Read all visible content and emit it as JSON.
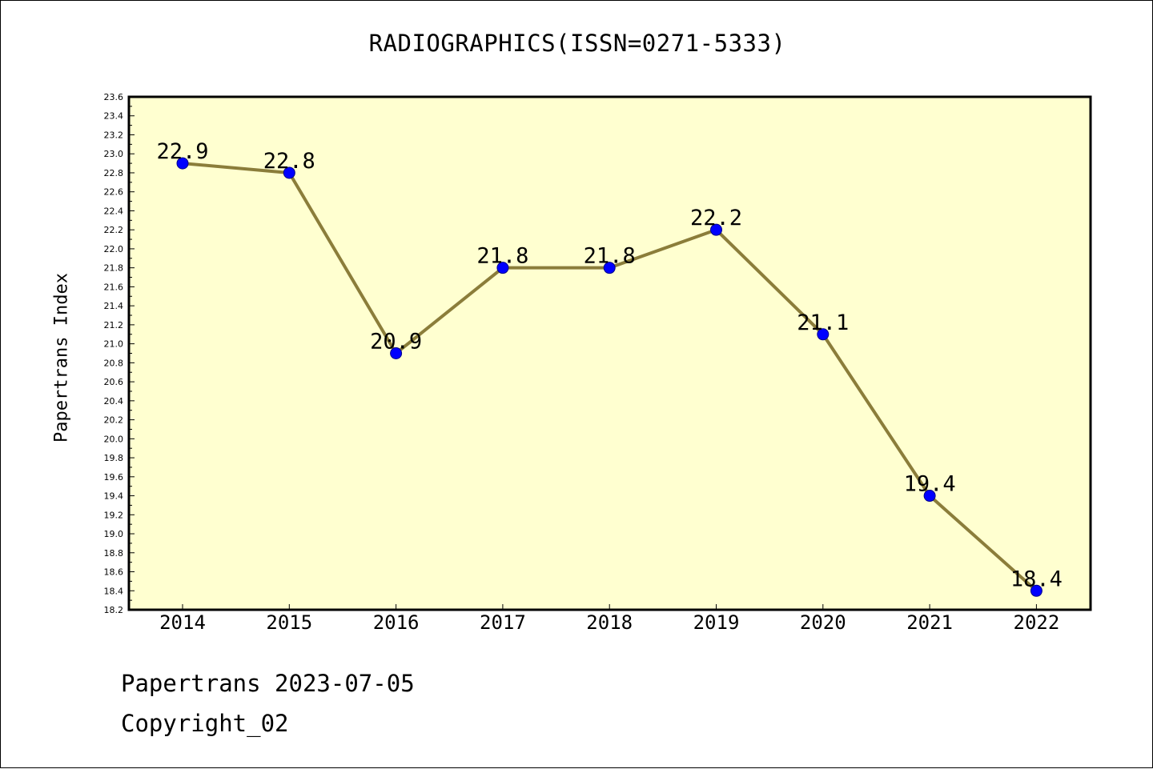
{
  "chart_data": {
    "type": "line",
    "title": "RADIOGRAPHICS(ISSN=0271-5333)",
    "ylabel": "Papertrans Index",
    "xlabel": "",
    "categories": [
      "2014",
      "2015",
      "2016",
      "2017",
      "2018",
      "2019",
      "2020",
      "2021",
      "2022"
    ],
    "series": [
      {
        "values": [
          22.9,
          22.8,
          20.9,
          21.8,
          21.8,
          22.2,
          21.1,
          19.4,
          18.4
        ]
      }
    ],
    "data_labels": [
      "22.9",
      "22.8",
      "20.9",
      "21.8",
      "21.8",
      "22.2",
      "21.1",
      "19.4",
      "18.4"
    ],
    "ylim": [
      18.2,
      23.6
    ],
    "ytick_labels": [
      "18.2",
      "18.4",
      "18.6",
      "18.8",
      "19.0",
      "19.2",
      "19.4",
      "19.6",
      "19.8",
      "20.0",
      "20.2",
      "20.4",
      "20.6",
      "20.8",
      "21.0",
      "21.2",
      "21.4",
      "21.6",
      "21.8",
      "22.0",
      "22.2",
      "22.4",
      "22.6",
      "22.8",
      "23.0",
      "23.2",
      "23.4",
      "23.6"
    ],
    "grid": false,
    "colors": {
      "plot_background": "#FFFFD0",
      "line": "#8B7D3A",
      "marker": "#0000FF"
    }
  },
  "footer": {
    "date_line": "Papertrans 2023-07-05",
    "copyright": "Copyright_02"
  }
}
